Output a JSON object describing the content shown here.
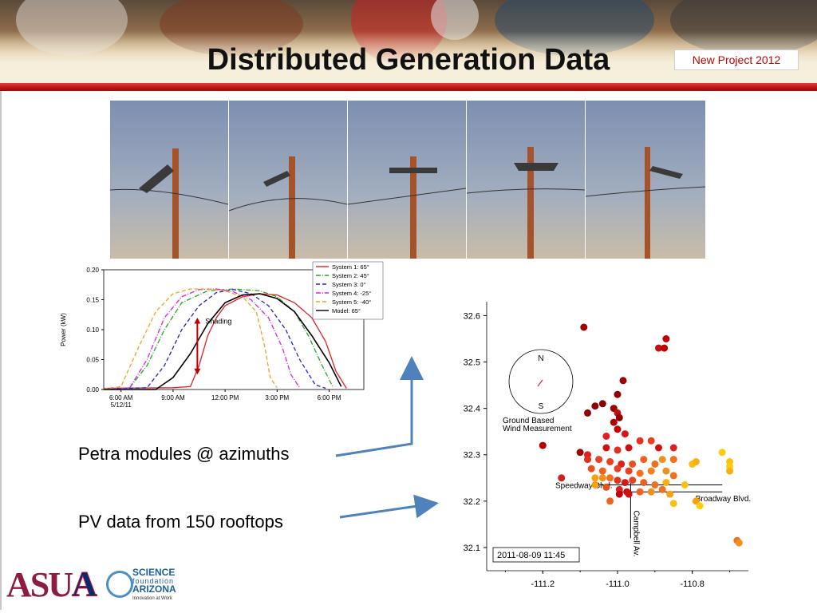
{
  "slide": {
    "title": "Distributed Generation Data",
    "badge": "New Project 2012",
    "caption_petra": "Petra modules @ azimuths",
    "caption_pv": "PV data from 150 rooftops"
  },
  "logos": {
    "asu": "ASU",
    "ua": "A",
    "sfa_line1": "SCIENCE",
    "sfa_line2": "foundation",
    "sfa_line3": "ARIZONA",
    "sfa_line4": "Innovation at Work"
  },
  "colors": {
    "accent_red": "#c00000",
    "sky": "#8fa2bf",
    "pole": "#a5532b"
  },
  "photos": {
    "count": 5,
    "description_free": true
  },
  "chart_data": [
    {
      "type": "line",
      "xlabel": "",
      "ylabel": "Power (kW)",
      "ylim": [
        0,
        0.2
      ],
      "yticks": [
        "0.20",
        "0.15",
        "0.10",
        "0.05",
        "0.00"
      ],
      "xticks": [
        "6:00 AM\n5/12/11",
        "9:00 AM",
        "12:00 PM",
        "3:00 PM",
        "6:00 PM"
      ],
      "xrange_hours": [
        5,
        20
      ],
      "annotation": "Shading",
      "legend": "top-right",
      "series": [
        {
          "name": "System 1: 65°",
          "color": "#e02020",
          "dash": "solid",
          "points": [
            [
              5,
              0.002
            ],
            [
              9,
              0.003
            ],
            [
              10,
              0.005
            ],
            [
              10.5,
              0.04
            ],
            [
              11,
              0.09
            ],
            [
              11.5,
              0.12
            ],
            [
              12,
              0.14
            ],
            [
              13,
              0.155
            ],
            [
              14,
              0.16
            ],
            [
              15,
              0.158
            ],
            [
              16,
              0.145
            ],
            [
              17,
              0.12
            ],
            [
              17.8,
              0.08
            ],
            [
              18.4,
              0.03
            ],
            [
              19,
              0.002
            ]
          ]
        },
        {
          "name": "System 2: 45°",
          "color": "#22aa22",
          "dash": "dashdot",
          "points": [
            [
              5,
              0.001
            ],
            [
              6.5,
              0.003
            ],
            [
              7.5,
              0.04
            ],
            [
              8.5,
              0.1
            ],
            [
              9.5,
              0.145
            ],
            [
              11,
              0.165
            ],
            [
              12.5,
              0.168
            ],
            [
              14,
              0.165
            ],
            [
              15,
              0.155
            ],
            [
              16,
              0.13
            ],
            [
              16.8,
              0.09
            ],
            [
              17.6,
              0.04
            ],
            [
              18.2,
              0.005
            ]
          ]
        },
        {
          "name": "System 3: 0°",
          "color": "#2222cc",
          "dash": "dash",
          "points": [
            [
              5,
              0.001
            ],
            [
              7.5,
              0.003
            ],
            [
              8.5,
              0.04
            ],
            [
              9.5,
              0.1
            ],
            [
              10.5,
              0.14
            ],
            [
              11.5,
              0.162
            ],
            [
              12.5,
              0.167
            ],
            [
              13.5,
              0.16
            ],
            [
              14.5,
              0.14
            ],
            [
              15.5,
              0.1
            ],
            [
              16.3,
              0.05
            ],
            [
              17.2,
              0.008
            ],
            [
              17.8,
              0.002
            ]
          ]
        },
        {
          "name": "System 4: -25°",
          "color": "#dd22dd",
          "dash": "dashdot",
          "points": [
            [
              5,
              0.001
            ],
            [
              6.5,
              0.003
            ],
            [
              7.5,
              0.05
            ],
            [
              8.5,
              0.12
            ],
            [
              9.5,
              0.155
            ],
            [
              10.5,
              0.167
            ],
            [
              11.5,
              0.168
            ],
            [
              12.5,
              0.163
            ],
            [
              13.5,
              0.15
            ],
            [
              14.5,
              0.12
            ],
            [
              15.3,
              0.07
            ],
            [
              15.8,
              0.025
            ],
            [
              16.3,
              0.003
            ]
          ]
        },
        {
          "name": "System 5: -40°",
          "color": "#f5a020",
          "dash": "dash",
          "points": [
            [
              5,
              0.001
            ],
            [
              6,
              0.005
            ],
            [
              7,
              0.07
            ],
            [
              8,
              0.13
            ],
            [
              9,
              0.16
            ],
            [
              10,
              0.168
            ],
            [
              11,
              0.168
            ],
            [
              12,
              0.165
            ],
            [
              13,
              0.155
            ],
            [
              13.8,
              0.13
            ],
            [
              14.3,
              0.07
            ],
            [
              14.6,
              0.02
            ],
            [
              15,
              0.003
            ]
          ]
        },
        {
          "name": "Model: 65°",
          "color": "#000000",
          "dash": "solid",
          "points": [
            [
              5,
              0.0
            ],
            [
              8,
              0.0
            ],
            [
              9,
              0.02
            ],
            [
              10,
              0.06
            ],
            [
              11,
              0.11
            ],
            [
              12,
              0.145
            ],
            [
              13,
              0.158
            ],
            [
              14,
              0.16
            ],
            [
              15,
              0.152
            ],
            [
              16,
              0.13
            ],
            [
              17,
              0.09
            ],
            [
              18,
              0.045
            ],
            [
              18.7,
              0.005
            ]
          ]
        }
      ]
    },
    {
      "type": "scatter",
      "xlabel": "",
      "ylabel": "",
      "xlim": [
        -111.35,
        -110.65
      ],
      "ylim": [
        32.05,
        32.63
      ],
      "xticks": [
        "-111.2",
        "-111.0",
        "-110.8"
      ],
      "yticks": [
        "32.6",
        "32.5",
        "32.4",
        "32.3",
        "32.2",
        "32.1"
      ],
      "labels": {
        "compass_n": "N",
        "compass_s": "S",
        "wind1": "Ground Based",
        "wind2": "Wind Measurement",
        "speedway": "Speedway Blvd.",
        "broadway": "Broadway Blvd.",
        "campbell": "Campbell Av.",
        "timestamp": "2011-08-09 11:45"
      },
      "points": [
        [
          -111.09,
          32.575,
          "#a00000"
        ],
        [
          -110.87,
          32.55,
          "#c00000"
        ],
        [
          -110.89,
          32.53,
          "#c01010"
        ],
        [
          -110.875,
          32.53,
          "#c00000"
        ],
        [
          -110.985,
          32.46,
          "#a00000"
        ],
        [
          -111.0,
          32.43,
          "#900000"
        ],
        [
          -111.04,
          32.41,
          "#8a0000"
        ],
        [
          -111.01,
          32.4,
          "#a00000"
        ],
        [
          -111.0,
          32.39,
          "#c01010"
        ],
        [
          -111.06,
          32.405,
          "#900000"
        ],
        [
          -111.08,
          32.39,
          "#900000"
        ],
        [
          -111.01,
          32.37,
          "#b00000"
        ],
        [
          -110.995,
          32.38,
          "#900000"
        ],
        [
          -111.0,
          32.355,
          "#c00000"
        ],
        [
          -110.98,
          32.345,
          "#d81818"
        ],
        [
          -111.03,
          32.34,
          "#e02020"
        ],
        [
          -111.2,
          32.32,
          "#b00000"
        ],
        [
          -111.1,
          32.305,
          "#a00000"
        ],
        [
          -111.08,
          32.3,
          "#e02020"
        ],
        [
          -111.03,
          32.315,
          "#d01010"
        ],
        [
          -111.0,
          32.31,
          "#e03020"
        ],
        [
          -110.97,
          32.315,
          "#d01010"
        ],
        [
          -110.94,
          32.33,
          "#e03020"
        ],
        [
          -110.91,
          32.33,
          "#e84020"
        ],
        [
          -110.89,
          32.315,
          "#d01010"
        ],
        [
          -110.85,
          32.315,
          "#e02020"
        ],
        [
          -111.08,
          32.29,
          "#e03020"
        ],
        [
          -111.05,
          32.29,
          "#e84020"
        ],
        [
          -111.02,
          32.285,
          "#e84020"
        ],
        [
          -110.99,
          32.28,
          "#e02020"
        ],
        [
          -110.96,
          32.28,
          "#e85020"
        ],
        [
          -110.93,
          32.29,
          "#f06020"
        ],
        [
          -110.9,
          32.28,
          "#f07020"
        ],
        [
          -110.88,
          32.29,
          "#f09020"
        ],
        [
          -110.85,
          32.29,
          "#f07020"
        ],
        [
          -110.8,
          32.28,
          "#f8c010"
        ],
        [
          -110.79,
          32.285,
          "#f8b010"
        ],
        [
          -110.72,
          32.305,
          "#f8d010"
        ],
        [
          -110.7,
          32.285,
          "#f8c010"
        ],
        [
          -110.7,
          32.275,
          "#f8d010"
        ],
        [
          -110.7,
          32.265,
          "#f8b010"
        ],
        [
          -111.07,
          32.27,
          "#e85020"
        ],
        [
          -111.04,
          32.265,
          "#f06020"
        ],
        [
          -111.0,
          32.27,
          "#e84020"
        ],
        [
          -110.97,
          32.265,
          "#e84020"
        ],
        [
          -110.94,
          32.26,
          "#f07020"
        ],
        [
          -110.91,
          32.265,
          "#f08020"
        ],
        [
          -110.87,
          32.265,
          "#f09020"
        ],
        [
          -110.85,
          32.255,
          "#f07020"
        ],
        [
          -111.15,
          32.25,
          "#d02020"
        ],
        [
          -111.06,
          32.25,
          "#f8a010"
        ],
        [
          -111.04,
          32.25,
          "#f09020"
        ],
        [
          -111.02,
          32.25,
          "#f07020"
        ],
        [
          -111.0,
          32.245,
          "#e03020"
        ],
        [
          -110.98,
          32.24,
          "#d81818"
        ],
        [
          -110.96,
          32.245,
          "#e84020"
        ],
        [
          -110.93,
          32.24,
          "#f06020"
        ],
        [
          -110.9,
          32.235,
          "#f07020"
        ],
        [
          -110.87,
          32.24,
          "#f8b010"
        ],
        [
          -110.82,
          32.235,
          "#f8c010"
        ],
        [
          -111.06,
          32.235,
          "#f8a010"
        ],
        [
          -111.03,
          32.23,
          "#e85020"
        ],
        [
          -110.995,
          32.225,
          "#e02020"
        ],
        [
          -110.975,
          32.22,
          "#c01010"
        ],
        [
          -110.995,
          32.215,
          "#c00000"
        ],
        [
          -110.97,
          32.215,
          "#d01010"
        ],
        [
          -110.94,
          32.22,
          "#f06020"
        ],
        [
          -110.91,
          32.22,
          "#f09020"
        ],
        [
          -110.88,
          32.225,
          "#f07020"
        ],
        [
          -110.86,
          32.215,
          "#f8a010"
        ],
        [
          -111.02,
          32.2,
          "#f06020"
        ],
        [
          -110.85,
          32.195,
          "#f8c010"
        ],
        [
          -110.79,
          32.2,
          "#f8a010"
        ],
        [
          -110.78,
          32.19,
          "#f8d010"
        ],
        [
          -110.68,
          32.115,
          "#f07020"
        ],
        [
          -110.675,
          32.11,
          "#f09020"
        ]
      ]
    }
  ]
}
